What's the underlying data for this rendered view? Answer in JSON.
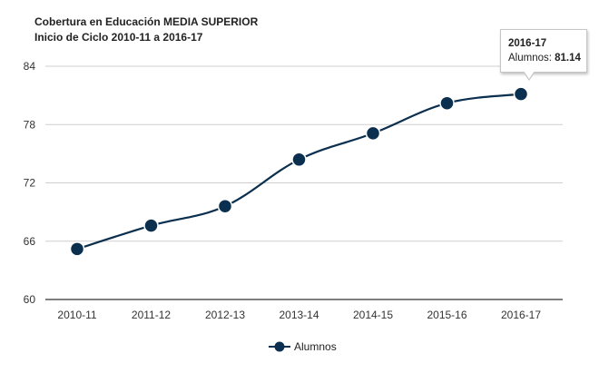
{
  "chart_data": {
    "type": "line",
    "title": "Cobertura en Educación MEDIA SUPERIOR",
    "subtitle": "Inicio de Ciclo 2010-11 a 2016-17",
    "xlabel": "",
    "ylabel": "",
    "categories": [
      "2010-11",
      "2011-12",
      "2012-13",
      "2013-14",
      "2014-15",
      "2015-16",
      "2016-17"
    ],
    "series": [
      {
        "name": "Alumnos",
        "values": [
          65.2,
          67.6,
          69.6,
          74.4,
          77.1,
          80.2,
          81.14
        ],
        "color": "#0b2f4f"
      }
    ],
    "ylim": [
      60,
      84
    ],
    "yticks": [
      "60",
      "66",
      "72",
      "78",
      "84"
    ],
    "grid": true,
    "legend": "bottom",
    "tooltip": {
      "category": "2016-17",
      "series": "Alumnos:",
      "value": "81.14"
    }
  }
}
